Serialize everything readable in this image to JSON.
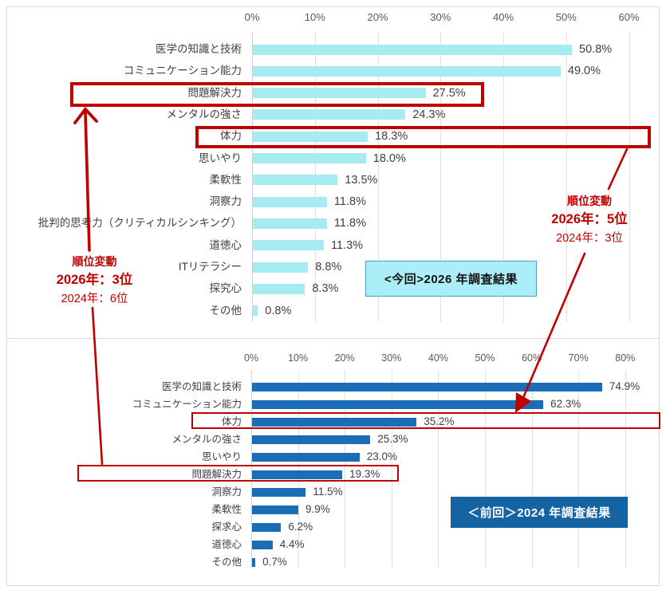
{
  "colors": {
    "bar_2026": "#a6ebf2",
    "bar_2024": "#1b6db5",
    "highlight_red": "#c00000",
    "gridline": "#e0e0e0",
    "axis_text": "#595959",
    "label_text": "#404040",
    "caption_2026_fill": "#aceef7",
    "caption_2026_border": "#4e9dc3",
    "caption_2024_fill": "#1464a4"
  },
  "chart_data": [
    {
      "id": "survey-2026",
      "type": "bar",
      "orientation": "horizontal",
      "caption": "<今回>2026 年調査結果",
      "categories": [
        "医学の知識と技術",
        "コミュニケーション能力",
        "問題解決力",
        "メンタルの強さ",
        "体力",
        "思いやり",
        "柔軟性",
        "洞察力",
        "批判的思考力（クリティカルシンキング）",
        "道徳心",
        "ITリテラシー",
        "探究心",
        "その他"
      ],
      "values": [
        50.8,
        49.0,
        27.5,
        24.3,
        18.3,
        18.0,
        13.5,
        11.8,
        11.8,
        11.3,
        8.8,
        8.3,
        0.8
      ],
      "value_labels": [
        "50.8%",
        "49.0%",
        "27.5%",
        "24.3%",
        "18.3%",
        "18.0%",
        "13.5%",
        "11.8%",
        "11.8%",
        "11.3%",
        "8.8%",
        "8.3%",
        "0.8%"
      ],
      "axis_ticks": [
        "0%",
        "10%",
        "20%",
        "30%",
        "40%",
        "50%",
        "60%"
      ],
      "xlim": [
        0,
        60
      ],
      "grid": true,
      "legend": "none",
      "highlighted_categories": [
        "問題解決力",
        "体力"
      ]
    },
    {
      "id": "survey-2024",
      "type": "bar",
      "orientation": "horizontal",
      "caption": "＜前回＞2024 年調査結果",
      "categories": [
        "医学の知識と技術",
        "コミュニケーション能力",
        "体力",
        "メンタルの強さ",
        "思いやり",
        "問題解決力",
        "洞察力",
        "柔軟性",
        "探求心",
        "道徳心",
        "その他"
      ],
      "values": [
        74.9,
        62.3,
        35.2,
        25.3,
        23.0,
        19.3,
        11.5,
        9.9,
        6.2,
        4.4,
        0.7
      ],
      "value_labels": [
        "74.9%",
        "62.3%",
        "35.2%",
        "25.3%",
        "23.0%",
        "19.3%",
        "11.5%",
        "9.9%",
        "6.2%",
        "4.4%",
        "0.7%"
      ],
      "axis_ticks": [
        "0%",
        "10%",
        "20%",
        "30%",
        "40%",
        "50%",
        "60%",
        "70%",
        "80%"
      ],
      "xlim": [
        0,
        80
      ],
      "grid": true,
      "legend": "none",
      "highlighted_categories": [
        "体力",
        "問題解決力"
      ]
    }
  ],
  "annotations": {
    "left": {
      "title": "順位変動",
      "current": "2026年：3位",
      "previous": "2024年：6位"
    },
    "right": {
      "title": "順位変動",
      "current": "2026年：5位",
      "previous": "2024年：3位"
    }
  }
}
